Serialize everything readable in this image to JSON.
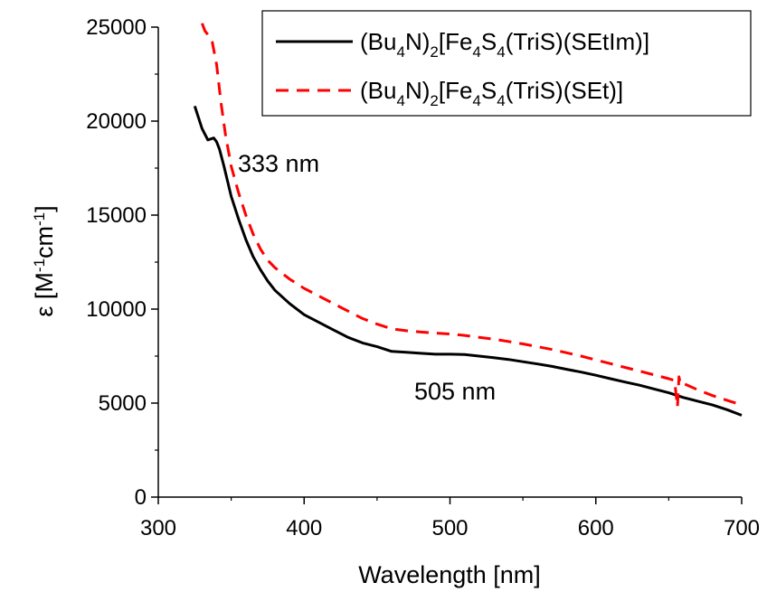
{
  "chart_data": {
    "type": "line",
    "xlabel": "Wavelength [nm]",
    "xlim": [
      300,
      700
    ],
    "ylim": [
      0,
      25000
    ],
    "x_ticks": [
      300,
      400,
      500,
      600,
      700
    ],
    "y_ticks": [
      0,
      5000,
      10000,
      15000,
      20000,
      25000
    ],
    "ylabel": {
      "symbol": "ε",
      "open": "[M",
      "exp1": "-1",
      "middle": "cm",
      "exp2": "-1",
      "close": "]"
    },
    "grid": false,
    "legend_position": "top-right",
    "series": [
      {
        "name": "(Bu4N)2[Fe4S4(TriS)(SEtIm)]",
        "name_parts": [
          {
            "t": "(Bu"
          },
          {
            "t": "4",
            "sub": true
          },
          {
            "t": "N)"
          },
          {
            "t": "2",
            "sub": true
          },
          {
            "t": "[Fe"
          },
          {
            "t": "4",
            "sub": true
          },
          {
            "t": "S"
          },
          {
            "t": "4",
            "sub": true
          },
          {
            "t": "(TriS)(SEtIm)]"
          }
        ],
        "color": "#000000",
        "dash": "solid",
        "x": [
          325,
          330,
          334,
          338,
          340,
          342,
          345,
          350,
          355,
          360,
          365,
          370,
          375,
          380,
          390,
          400,
          410,
          420,
          430,
          440,
          450,
          460,
          470,
          480,
          490,
          500,
          510,
          520,
          530,
          540,
          550,
          560,
          570,
          580,
          590,
          600,
          610,
          620,
          630,
          640,
          650,
          660,
          670,
          680,
          690,
          700
        ],
        "y": [
          20800,
          19600,
          19000,
          19100,
          18900,
          18500,
          17600,
          16000,
          14800,
          13700,
          12800,
          12100,
          11500,
          11000,
          10300,
          9700,
          9300,
          8900,
          8500,
          8200,
          8000,
          7750,
          7700,
          7650,
          7600,
          7600,
          7580,
          7500,
          7420,
          7320,
          7200,
          7080,
          6950,
          6800,
          6650,
          6480,
          6300,
          6120,
          5950,
          5750,
          5550,
          5300,
          5100,
          4900,
          4650,
          4350
        ]
      },
      {
        "name": "(Bu4N)2[Fe4S4(TriS)(SEt)]",
        "name_parts": [
          {
            "t": "(Bu"
          },
          {
            "t": "4",
            "sub": true
          },
          {
            "t": "N)"
          },
          {
            "t": "2",
            "sub": true
          },
          {
            "t": "[Fe"
          },
          {
            "t": "4",
            "sub": true
          },
          {
            "t": "S"
          },
          {
            "t": "4",
            "sub": true
          },
          {
            "t": "(TriS)(SEt)]"
          }
        ],
        "color": "#ff0000",
        "dash": "dashed",
        "x": [
          330,
          332,
          334,
          337,
          340,
          343,
          346,
          350,
          355,
          360,
          365,
          370,
          375,
          380,
          390,
          400,
          410,
          420,
          430,
          440,
          450,
          460,
          470,
          480,
          490,
          500,
          510,
          520,
          530,
          540,
          550,
          560,
          570,
          580,
          590,
          600,
          610,
          620,
          630,
          640,
          650,
          654,
          656,
          657,
          658,
          660,
          670,
          680,
          690,
          700
        ],
        "y": [
          25200,
          24800,
          24600,
          24200,
          23000,
          21000,
          19300,
          17600,
          16200,
          15000,
          14000,
          13200,
          12600,
          12200,
          11600,
          11100,
          10700,
          10300,
          9900,
          9500,
          9200,
          8950,
          8850,
          8780,
          8720,
          8680,
          8600,
          8500,
          8400,
          8280,
          8150,
          8000,
          7850,
          7680,
          7500,
          7300,
          7100,
          6900,
          6700,
          6500,
          6300,
          6200,
          4800,
          6400,
          6000,
          6050,
          5700,
          5400,
          5150,
          4900
        ]
      }
    ],
    "annotations": [
      {
        "text": "333 nm",
        "x": 333,
        "y": 17800
      },
      {
        "text": "505 nm",
        "x": 510,
        "y": 5400
      }
    ]
  }
}
